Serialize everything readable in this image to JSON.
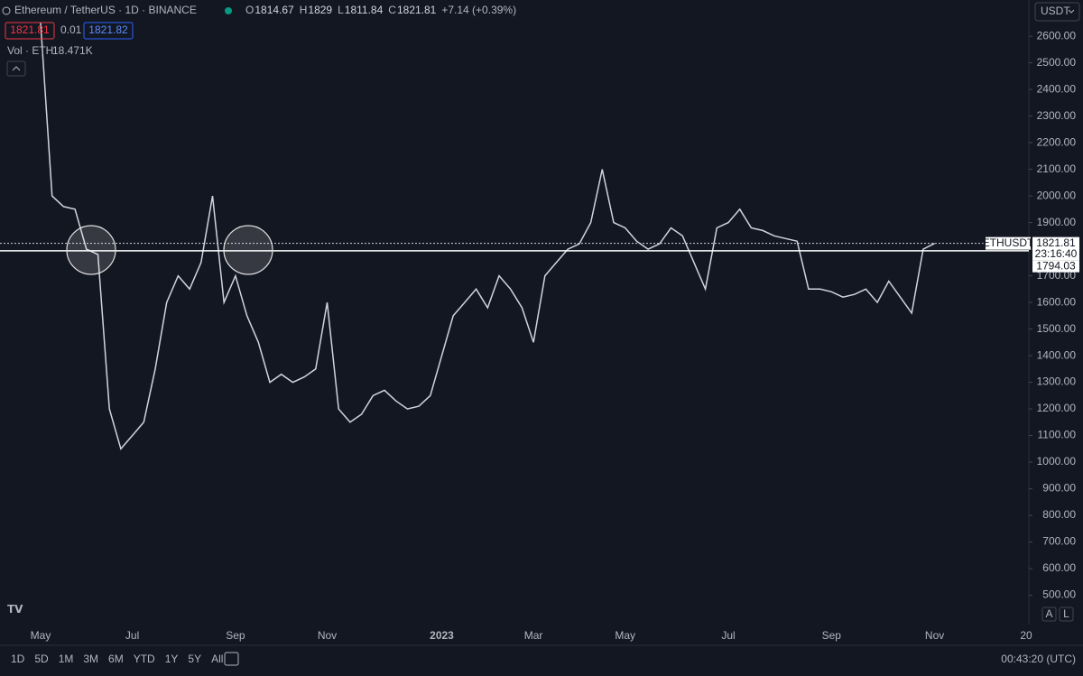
{
  "header": {
    "symbol": "Ethereum / TetherUS · 1D · BINANCE",
    "ohlc": [
      {
        "label": "O",
        "value": 1814.67
      },
      {
        "label": "H",
        "value": 1829.0
      },
      {
        "label": "L",
        "value": 1811.84
      },
      {
        "label": "C",
        "value": 1821.81
      }
    ],
    "change": "+7.14 (+0.39%)",
    "bid": 1821.81,
    "spread": 0.01,
    "ask": 1821.82,
    "volume_label": "Vol · ETH",
    "volume": "18.471K",
    "currency": "USDT"
  },
  "chart_data": {
    "type": "line",
    "color": "#d1d4dc",
    "categories": [
      "May",
      null,
      null,
      null,
      null,
      null,
      null,
      null,
      "Jul",
      null,
      null,
      null,
      null,
      null,
      null,
      null,
      null,
      "Sep",
      null,
      null,
      null,
      null,
      null,
      null,
      null,
      "Nov",
      null,
      null,
      null,
      null,
      null,
      null,
      null,
      null,
      null,
      "2023",
      null,
      null,
      null,
      null,
      null,
      null,
      null,
      "Mar",
      null,
      null,
      null,
      null,
      null,
      null,
      null,
      "May",
      null,
      null,
      null,
      null,
      null,
      null,
      null,
      null,
      "Jul",
      null,
      null,
      null,
      null,
      null,
      null,
      null,
      null,
      "Sep",
      null,
      null,
      null,
      null,
      null,
      null,
      null,
      null,
      "Nov"
    ],
    "values": [
      2650,
      2000,
      1960,
      1950,
      1800,
      1780,
      1200,
      1050,
      1100,
      1150,
      1350,
      1600,
      1700,
      1650,
      1750,
      2000,
      1600,
      1700,
      1550,
      1450,
      1300,
      1330,
      1300,
      1320,
      1350,
      1600,
      1200,
      1150,
      1180,
      1250,
      1270,
      1230,
      1200,
      1210,
      1250,
      1400,
      1550,
      1600,
      1650,
      1580,
      1700,
      1650,
      1580,
      1450,
      1700,
      1750,
      1800,
      1820,
      1900,
      2100,
      1900,
      1880,
      1830,
      1800,
      1820,
      1880,
      1850,
      1750,
      1650,
      1880,
      1900,
      1950,
      1880,
      1870,
      1850,
      1840,
      1830,
      1650,
      1650,
      1640,
      1620,
      1630,
      1650,
      1600,
      1680,
      1620,
      1560,
      1800,
      1821.81
    ],
    "ylim": [
      390,
      2736
    ],
    "yticks": [
      {
        "value": 2600,
        "label": "2600.00"
      },
      {
        "value": 2500,
        "label": "2500.00"
      },
      {
        "value": 2400,
        "label": "2400.00"
      },
      {
        "value": 2300,
        "label": "2300.00"
      },
      {
        "value": 2200,
        "label": "2200.00"
      },
      {
        "value": 2100,
        "label": "2100.00"
      },
      {
        "value": 2000,
        "label": "2000.00"
      },
      {
        "value": 1900,
        "label": "1900.00"
      },
      {
        "value": 1800,
        "label": "1800.00"
      },
      {
        "value": 1700,
        "label": "1700.00"
      },
      {
        "value": 1600,
        "label": "1600.00"
      },
      {
        "value": 1500,
        "label": "1500.00"
      },
      {
        "value": 1400,
        "label": "1400.00"
      },
      {
        "value": 1300,
        "label": "1300.00"
      },
      {
        "value": 1200,
        "label": "1200.00"
      },
      {
        "value": 1100,
        "label": "1100.00"
      },
      {
        "value": 1000,
        "label": "1000.00"
      },
      {
        "value": 900,
        "label": "900.00"
      },
      {
        "value": 800,
        "label": "800.00"
      },
      {
        "value": 700,
        "label": "700.00"
      },
      {
        "value": 600,
        "label": "600.00"
      },
      {
        "value": 500,
        "label": "500.00"
      }
    ],
    "last_price": 1821.81,
    "symbol_tag": "ETHUSDT",
    "countdown": "23:16:40",
    "level": 1794.03
  },
  "ui": {
    "axis_corner": "20",
    "scale_buttons": [
      "A",
      "L"
    ],
    "ranges": [
      "1D",
      "5D",
      "1M",
      "3M",
      "6M",
      "YTD",
      "1Y",
      "5Y",
      "All"
    ],
    "clock": "00:43:20 (UTC)"
  }
}
